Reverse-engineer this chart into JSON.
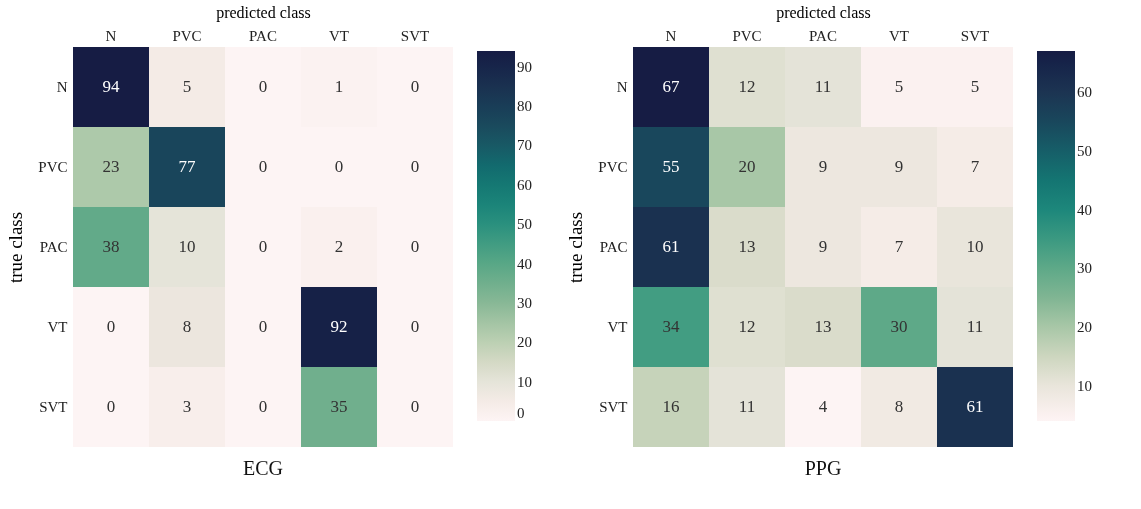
{
  "chart_data": [
    {
      "type": "heatmap",
      "title": "ECG",
      "xlabel": "predicted class",
      "ylabel": "true class",
      "categories": [
        "N",
        "PVC",
        "PAC",
        "VT",
        "SVT"
      ],
      "y_categories": [
        "N",
        "PVC",
        "PAC",
        "VT",
        "SVT"
      ],
      "cells": [
        [
          94,
          5,
          0,
          1,
          0
        ],
        [
          23,
          77,
          0,
          0,
          0
        ],
        [
          38,
          10,
          0,
          2,
          0
        ],
        [
          0,
          8,
          0,
          92,
          0
        ],
        [
          0,
          3,
          0,
          35,
          0
        ]
      ],
      "clim": [
        0,
        94
      ],
      "cticks": [
        0,
        10,
        20,
        30,
        40,
        50,
        60,
        70,
        80,
        90
      ],
      "data_labels": true
    },
    {
      "type": "heatmap",
      "title": "PPG",
      "xlabel": "predicted class",
      "ylabel": "true class",
      "categories": [
        "N",
        "PVC",
        "PAC",
        "VT",
        "SVT"
      ],
      "y_categories": [
        "N",
        "PVC",
        "PAC",
        "VT",
        "SVT"
      ],
      "cells": [
        [
          67,
          12,
          11,
          5,
          5
        ],
        [
          55,
          20,
          9,
          9,
          7
        ],
        [
          61,
          13,
          9,
          7,
          10
        ],
        [
          34,
          12,
          13,
          30,
          11
        ],
        [
          16,
          11,
          4,
          8,
          61
        ]
      ],
      "clim": [
        4,
        67
      ],
      "cticks": [
        10,
        20,
        30,
        40,
        50,
        60
      ],
      "data_labels": true
    }
  ]
}
